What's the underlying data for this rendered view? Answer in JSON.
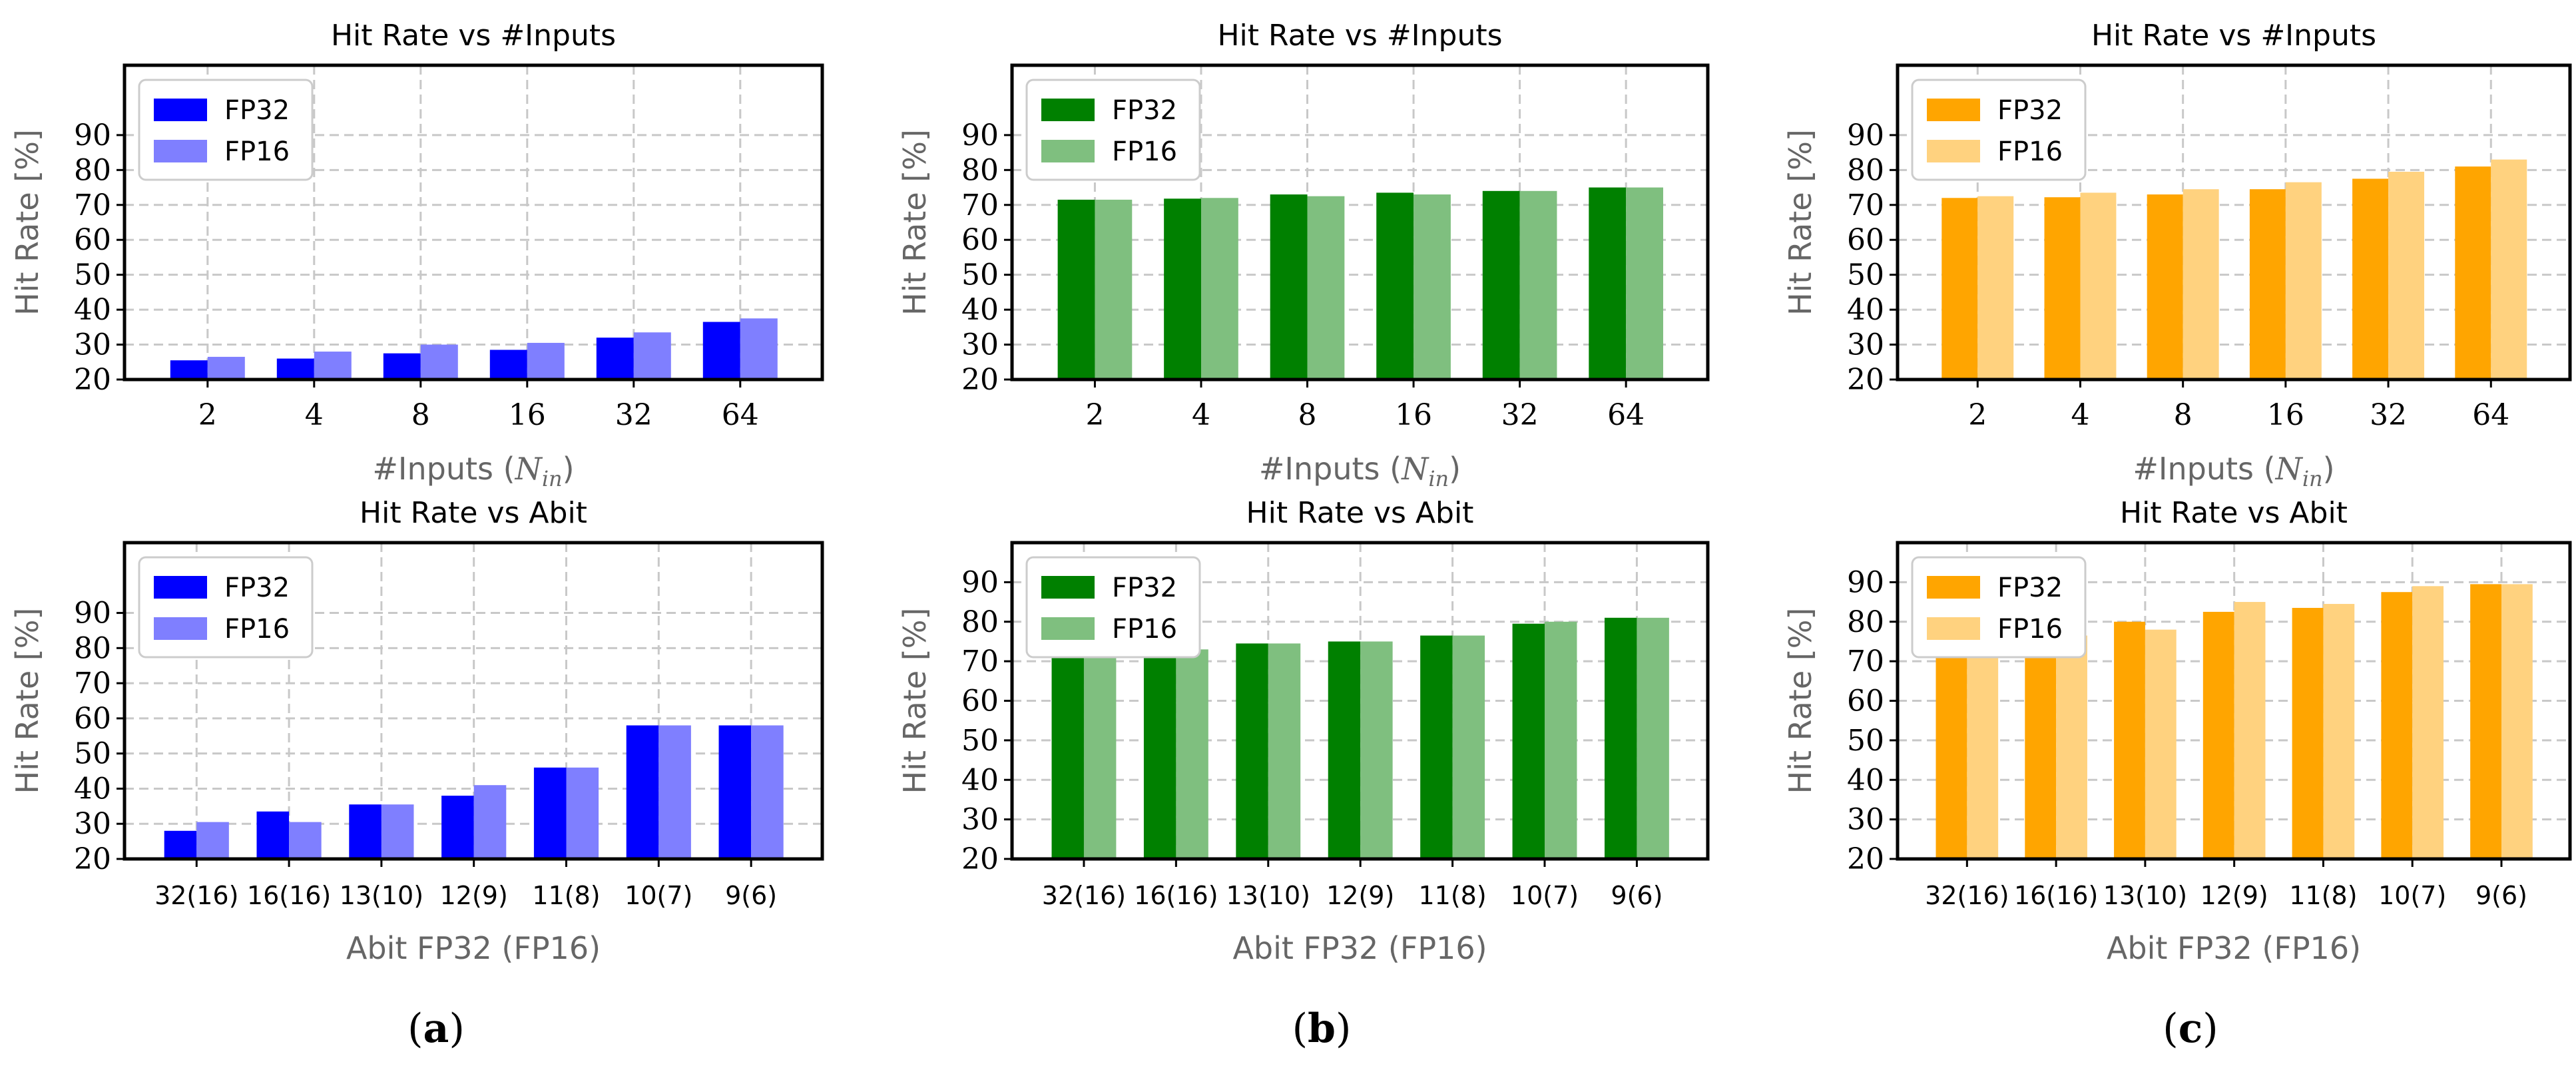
{
  "chart_data": [
    {
      "type": "bar",
      "id": "a-top",
      "title": "Hit Rate vs #Inputs",
      "xlabel": "#Inputs (",
      "xlabel_var": "N",
      "xlabel_sub": "in",
      "xlabel_end": ")",
      "ylabel": "Hit Rate [%]",
      "ylim": [
        20,
        110
      ],
      "yticks": [
        20,
        30,
        40,
        50,
        60,
        70,
        80,
        90
      ],
      "categories": [
        "2",
        "4",
        "8",
        "16",
        "32",
        "64"
      ],
      "grid": true,
      "legend_position": "top-left",
      "series": [
        {
          "name": "FP32",
          "color": "#0000ff",
          "values": [
            25.5,
            26,
            27.5,
            28.5,
            32,
            36.5
          ]
        },
        {
          "name": "FP16",
          "color": "#7f7fff",
          "values": [
            26.5,
            28,
            30,
            30.5,
            33.5,
            37.5
          ]
        }
      ]
    },
    {
      "type": "bar",
      "id": "b-top",
      "title": "Hit Rate vs #Inputs",
      "xlabel": "#Inputs (",
      "xlabel_var": "N",
      "xlabel_sub": "in",
      "xlabel_end": ")",
      "ylabel": "Hit Rate [%]",
      "ylim": [
        20,
        110
      ],
      "yticks": [
        20,
        30,
        40,
        50,
        60,
        70,
        80,
        90
      ],
      "categories": [
        "2",
        "4",
        "8",
        "16",
        "32",
        "64"
      ],
      "grid": true,
      "legend_position": "top-left",
      "series": [
        {
          "name": "FP32",
          "color": "#008000",
          "values": [
            71.5,
            71.8,
            73,
            73.5,
            74,
            75
          ]
        },
        {
          "name": "FP16",
          "color": "#7fbf7f",
          "values": [
            71.5,
            72,
            72.5,
            73,
            74,
            75
          ]
        }
      ]
    },
    {
      "type": "bar",
      "id": "c-top",
      "title": "Hit Rate vs #Inputs",
      "xlabel": "#Inputs (",
      "xlabel_var": "N",
      "xlabel_sub": "in",
      "xlabel_end": ")",
      "ylabel": "Hit Rate [%]",
      "ylim": [
        20,
        110
      ],
      "yticks": [
        20,
        30,
        40,
        50,
        60,
        70,
        80,
        90
      ],
      "categories": [
        "2",
        "4",
        "8",
        "16",
        "32",
        "64"
      ],
      "grid": true,
      "legend_position": "top-left",
      "series": [
        {
          "name": "FP32",
          "color": "#ffa500",
          "values": [
            72,
            72.2,
            73,
            74.5,
            77.5,
            81
          ]
        },
        {
          "name": "FP16",
          "color": "#ffd27f",
          "values": [
            72.5,
            73.5,
            74.5,
            76.5,
            79.5,
            83
          ]
        }
      ]
    },
    {
      "type": "bar",
      "id": "a-bot",
      "title": "Hit Rate vs Abit",
      "xlabel": "Abit FP32 (FP16)",
      "ylabel": "Hit Rate [%]",
      "ylim": [
        20,
        110
      ],
      "yticks": [
        20,
        30,
        40,
        50,
        60,
        70,
        80,
        90
      ],
      "categories": [
        "32(16)",
        "16(16)",
        "13(10)",
        "12(9)",
        "11(8)",
        "10(7)",
        "9(6)"
      ],
      "grid": true,
      "legend_position": "top-left",
      "series": [
        {
          "name": "FP32",
          "color": "#0000ff",
          "values": [
            28,
            33.5,
            35.5,
            38,
            46,
            58,
            58
          ]
        },
        {
          "name": "FP16",
          "color": "#7f7fff",
          "values": [
            30.5,
            30.5,
            35.5,
            41,
            46,
            58,
            58
          ]
        }
      ]
    },
    {
      "type": "bar",
      "id": "b-bot",
      "title": "Hit Rate vs Abit",
      "xlabel": "Abit FP32 (FP16)",
      "ylabel": "Hit Rate [%]",
      "ylim": [
        20,
        100
      ],
      "yticks": [
        20,
        30,
        40,
        50,
        60,
        70,
        80,
        90
      ],
      "categories": [
        "32(16)",
        "16(16)",
        "13(10)",
        "12(9)",
        "11(8)",
        "10(7)",
        "9(6)"
      ],
      "grid": true,
      "legend_position": "top-left",
      "series": [
        {
          "name": "FP32",
          "color": "#008000",
          "values": [
            73.5,
            74,
            74.5,
            75,
            76.5,
            79.5,
            81
          ]
        },
        {
          "name": "FP16",
          "color": "#7fbf7f",
          "values": [
            73,
            73,
            74.5,
            75,
            76.5,
            80,
            81
          ]
        }
      ]
    },
    {
      "type": "bar",
      "id": "c-bot",
      "title": "Hit Rate vs Abit",
      "xlabel": "Abit FP32 (FP16)",
      "ylabel": "Hit Rate [%]",
      "ylim": [
        20,
        100
      ],
      "yticks": [
        20,
        30,
        40,
        50,
        60,
        70,
        80,
        90
      ],
      "categories": [
        "32(16)",
        "16(16)",
        "13(10)",
        "12(9)",
        "11(8)",
        "10(7)",
        "9(6)"
      ],
      "grid": true,
      "legend_position": "top-left",
      "series": [
        {
          "name": "FP32",
          "color": "#ffa500",
          "values": [
            75.5,
            77.5,
            80,
            82.5,
            83.5,
            87.5,
            89.5
          ]
        },
        {
          "name": "FP16",
          "color": "#ffd27f",
          "values": [
            76.5,
            76.5,
            78,
            85,
            84.5,
            89,
            89.5
          ]
        }
      ]
    }
  ],
  "panel_labels": [
    {
      "open": "(",
      "letter": "a",
      "close": ")"
    },
    {
      "open": "(",
      "letter": "b",
      "close": ")"
    },
    {
      "open": "(",
      "letter": "c",
      "close": ")"
    }
  ]
}
